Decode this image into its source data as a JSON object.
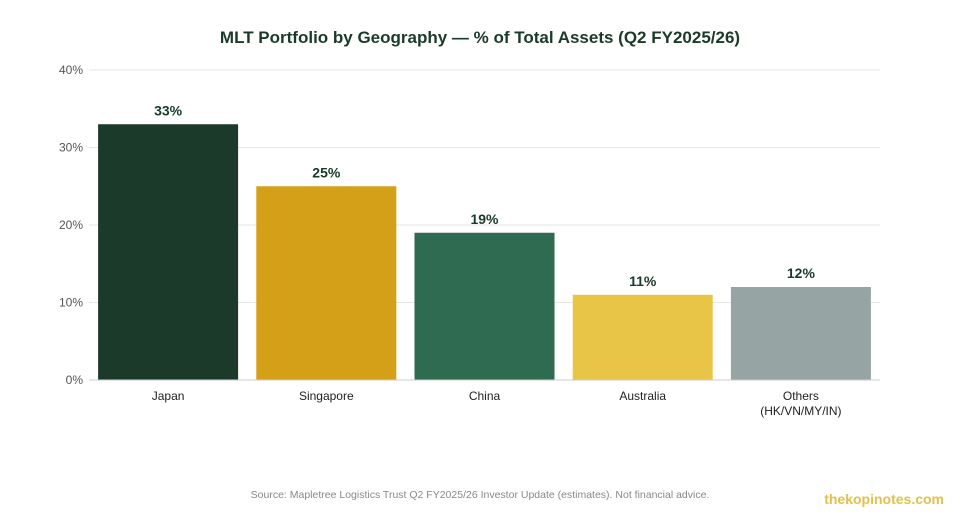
{
  "chart_data": {
    "type": "bar",
    "title": "MLT Portfolio by Geography — % of Total Assets (Q2 FY2025/26)",
    "xlabel": "",
    "ylabel": "",
    "categories": [
      [
        "Japan"
      ],
      [
        "Singapore"
      ],
      [
        "China"
      ],
      [
        "Australia"
      ],
      [
        "Others",
        "(HK/VN/MY/IN)"
      ]
    ],
    "values": [
      33,
      25,
      19,
      11,
      12
    ],
    "data_labels": [
      "33%",
      "25%",
      "19%",
      "11%",
      "12%"
    ],
    "colors": [
      "#1b3a2a",
      "#d4a017",
      "#2e6b50",
      "#e8c547",
      "#96a5a4"
    ],
    "ylim": [
      0,
      40
    ],
    "yticks": [
      0,
      10,
      20,
      30,
      40
    ],
    "ytick_labels": [
      "0%",
      "10%",
      "20%",
      "30%",
      "40%"
    ],
    "grid": true,
    "legend": "none"
  },
  "footer": {
    "source": "Source: Mapletree Logistics Trust Q2 FY2025/26 Investor Update (estimates). Not financial advice.",
    "brand": "thekopinotes.com"
  }
}
